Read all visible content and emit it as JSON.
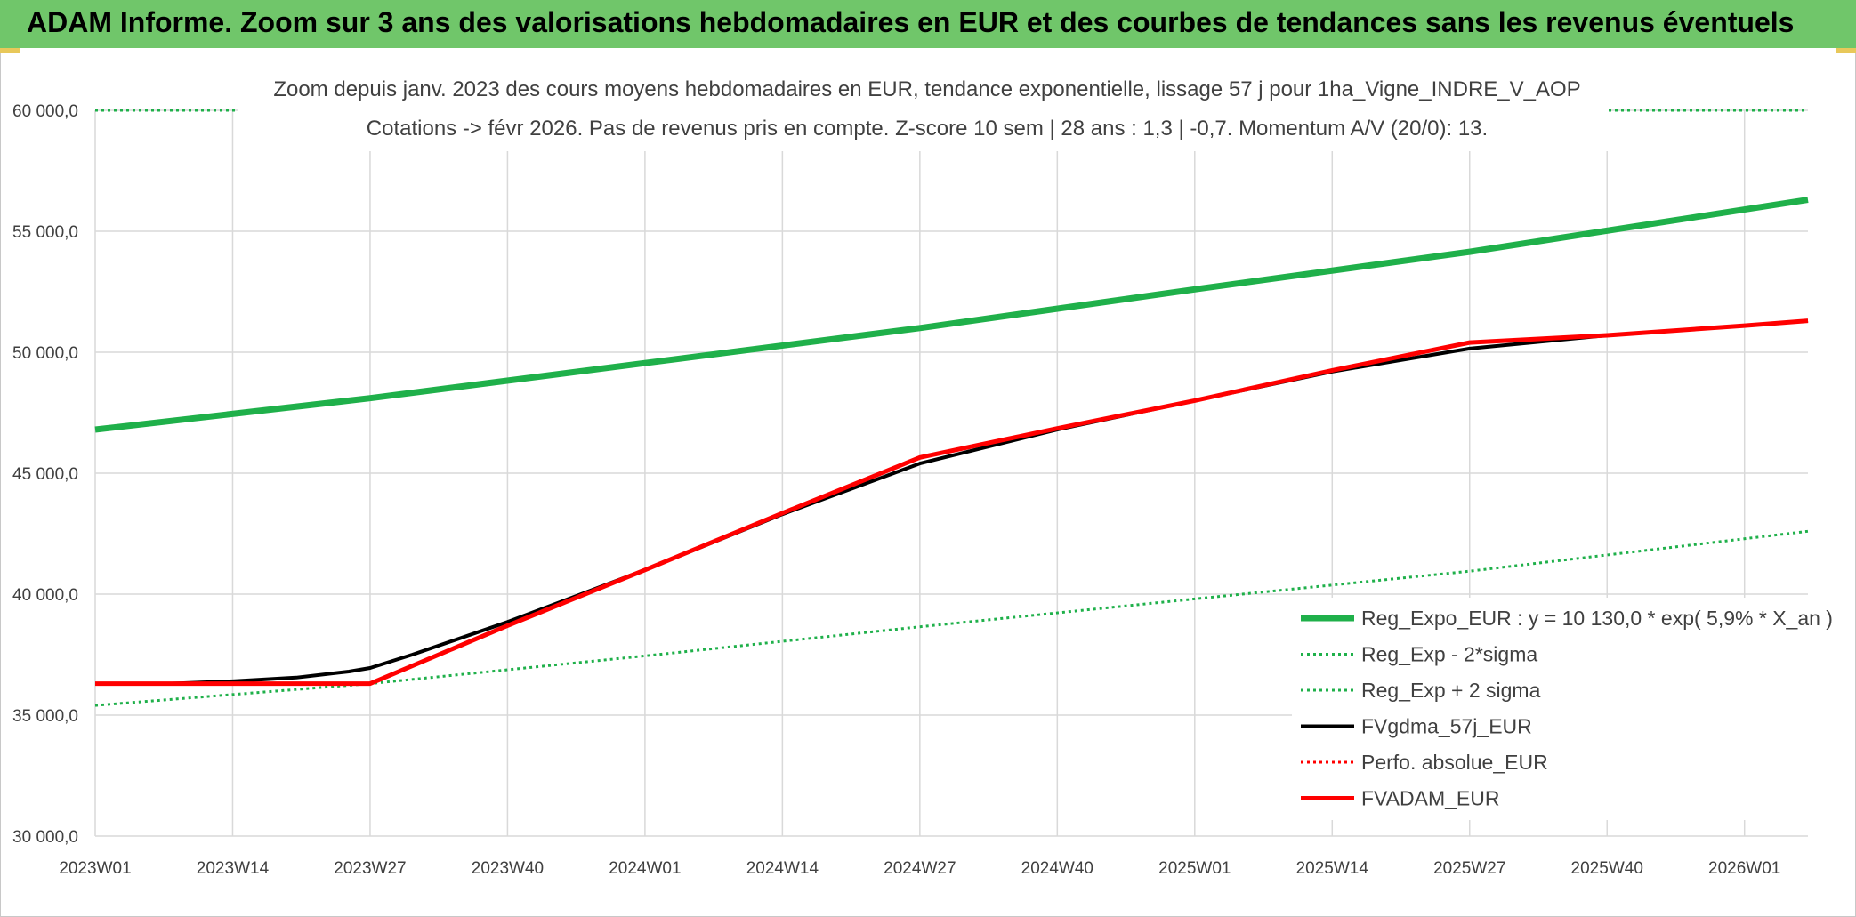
{
  "banner": {
    "title": "ADAM Informe. Zoom sur 3 ans des valorisations hebdomadaires en EUR et des courbes de tendances sans les revenus éventuels",
    "color": "#70c66a"
  },
  "chart_data": {
    "type": "line",
    "title_line1": "Zoom depuis janv. 2023 des cours moyens hebdomadaires en EUR, tendance exponentielle, lissage 57 j pour 1ha_Vigne_INDRE_V_AOP",
    "title_line2": "Cotations -> févr 2026. Pas de revenus pris en compte. Z-score 10 sem | 28 ans : 1,3 | -0,7. Momentum A/V (20/0): 13.",
    "x_categories": [
      "2023W01",
      "2023W14",
      "2023W27",
      "2023W40",
      "2024W01",
      "2024W14",
      "2024W27",
      "2024W40",
      "2025W01",
      "2025W14",
      "2025W27",
      "2025W40",
      "2026W01"
    ],
    "x_range": [
      "2023W01",
      "2026W07"
    ],
    "ylim": [
      30000,
      60000
    ],
    "y_ticks": [
      {
        "value": 30000,
        "label": "30 000,0"
      },
      {
        "value": 35000,
        "label": "35 000,0"
      },
      {
        "value": 40000,
        "label": "40 000,0"
      },
      {
        "value": 45000,
        "label": "45 000,0"
      },
      {
        "value": 50000,
        "label": "50 000,0"
      },
      {
        "value": 55000,
        "label": "55 000,0"
      },
      {
        "value": 60000,
        "label": "60 000,0"
      }
    ],
    "grid": true,
    "legend_position": "bottom-right",
    "series": [
      {
        "name": "Reg_Expo_EUR : y = 10 130,0 * exp( 5,9% *  X_an )",
        "color": "#1fb04a",
        "style": "solid",
        "width": 7,
        "points": [
          [
            "2023W01",
            46800
          ],
          [
            "2023W27",
            48100
          ],
          [
            "2024W01",
            49550
          ],
          [
            "2024W27",
            51000
          ],
          [
            "2025W01",
            52600
          ],
          [
            "2025W27",
            54150
          ],
          [
            "2026W07",
            56300
          ]
        ]
      },
      {
        "name": "Reg_Exp - 2*sigma",
        "color": "#1fb04a",
        "style": "dotted",
        "width": 3,
        "points": [
          [
            "2023W01",
            35400
          ],
          [
            "2023W27",
            36300
          ],
          [
            "2024W01",
            37450
          ],
          [
            "2024W27",
            38650
          ],
          [
            "2025W01",
            39800
          ],
          [
            "2025W27",
            40950
          ],
          [
            "2026W07",
            42600
          ]
        ]
      },
      {
        "name": "Reg_Exp + 2 sigma",
        "color": "#1fb04a",
        "style": "dotted",
        "width": 3,
        "points": [
          [
            "2023W01",
            60000
          ],
          [
            "2026W07",
            60000
          ]
        ]
      },
      {
        "name": "FVgdma_57j_EUR",
        "color": "#000000",
        "style": "solid",
        "width": 4,
        "points": [
          [
            "2023W01",
            36300
          ],
          [
            "2023W08",
            36300
          ],
          [
            "2023W14",
            36400
          ],
          [
            "2023W20",
            36550
          ],
          [
            "2023W25",
            36800
          ],
          [
            "2023W27",
            36950
          ],
          [
            "2023W31",
            37500
          ],
          [
            "2023W40",
            38850
          ],
          [
            "2024W01",
            41000
          ],
          [
            "2024W14",
            43300
          ],
          [
            "2024W27",
            45400
          ],
          [
            "2024W40",
            46800
          ],
          [
            "2025W01",
            48000
          ],
          [
            "2025W14",
            49200
          ],
          [
            "2025W27",
            50150
          ],
          [
            "2025W40",
            50700
          ],
          [
            "2026W01",
            51100
          ],
          [
            "2026W07",
            51300
          ]
        ]
      },
      {
        "name": "Perfo. absolue_EUR",
        "color": "#ff0000",
        "style": "dotted",
        "width": 3,
        "points": [
          [
            "2023W01",
            36300
          ],
          [
            "2023W27",
            36300
          ],
          [
            "2023W40",
            38700
          ],
          [
            "2024W01",
            41000
          ],
          [
            "2024W14",
            43350
          ],
          [
            "2024W27",
            45650
          ],
          [
            "2024W40",
            46850
          ],
          [
            "2025W01",
            48000
          ],
          [
            "2025W14",
            49250
          ],
          [
            "2025W27",
            50400
          ],
          [
            "2025W40",
            50700
          ],
          [
            "2026W01",
            51100
          ],
          [
            "2026W07",
            51300
          ]
        ]
      },
      {
        "name": "FVADAM_EUR",
        "color": "#ff0000",
        "style": "solid",
        "width": 5,
        "points": [
          [
            "2023W01",
            36300
          ],
          [
            "2023W27",
            36300
          ],
          [
            "2023W40",
            38700
          ],
          [
            "2024W01",
            41000
          ],
          [
            "2024W14",
            43350
          ],
          [
            "2024W27",
            45650
          ],
          [
            "2024W40",
            46850
          ],
          [
            "2025W01",
            48000
          ],
          [
            "2025W14",
            49250
          ],
          [
            "2025W27",
            50400
          ],
          [
            "2025W40",
            50700
          ],
          [
            "2026W01",
            51100
          ],
          [
            "2026W07",
            51300
          ]
        ]
      }
    ]
  }
}
